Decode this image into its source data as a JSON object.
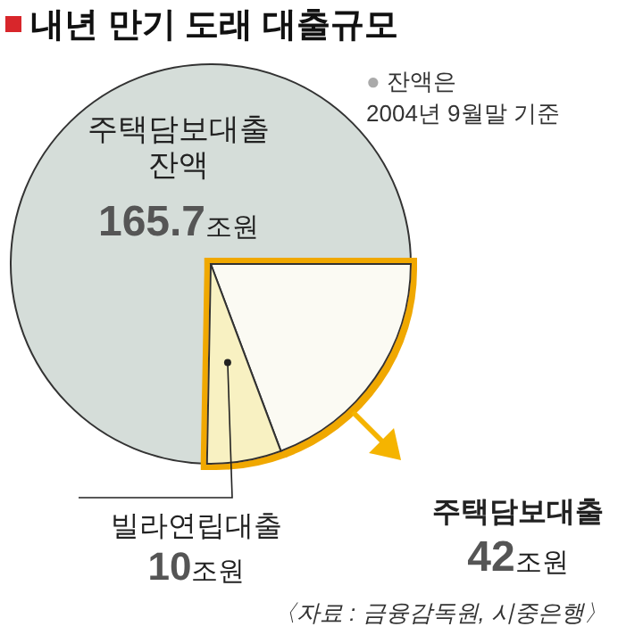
{
  "chart_data": {
    "type": "pie",
    "title": "내년 만기 도래 대출규모",
    "categories": [
      "주택담보대출 잔액",
      "주택담보대출",
      "빌라연립대출"
    ],
    "values": [
      74.7,
      19.3,
      6.0
    ],
    "colors": [
      "#d5ddd9",
      "#fbfaf3",
      "#f8f1c2"
    ],
    "annotations": [
      "● 잔액은 2004년 9월말 기준",
      "〈자료 : 금융감독원, 시중은행〉",
      "165.7조원",
      "42조원",
      "10조원"
    ]
  }
}
